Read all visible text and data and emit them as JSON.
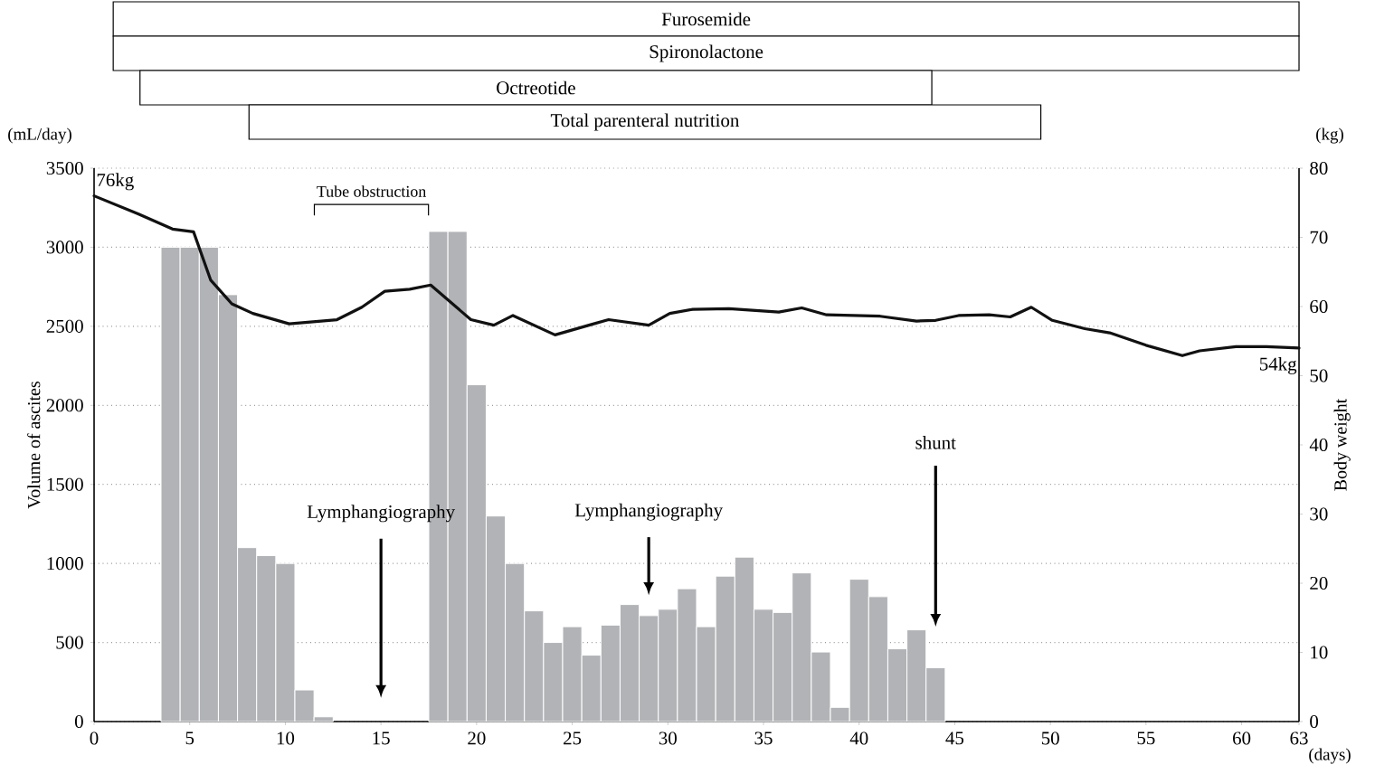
{
  "chart_data": [
    {
      "type": "bar",
      "orientation": "horizontal",
      "xlim": [
        0,
        63
      ],
      "tick_labels": false,
      "categories": [
        "Furosemide",
        "Spironolactone",
        "Octreotide",
        "Total parenteral nutrition"
      ],
      "base": [
        1,
        1,
        2.4,
        8.1
      ],
      "values": [
        62,
        62,
        41.4,
        41.4
      ],
      "color": "#ffffff"
    },
    {
      "type": "bar",
      "ylabel": "Volume of ascites",
      "y2label": "Body weight",
      "xlim": [
        0,
        63
      ],
      "xticks": [
        0,
        5,
        10,
        15,
        20,
        25,
        30,
        35,
        40,
        45,
        50,
        55,
        60,
        63
      ],
      "ylim": [
        0,
        3500
      ],
      "yticks": [
        0,
        500,
        1000,
        1500,
        2000,
        2500,
        3000,
        3500
      ],
      "y2lim": [
        0,
        80
      ],
      "y2ticks": [
        0,
        10,
        20,
        30,
        40,
        50,
        60,
        70,
        80
      ],
      "grid": "y",
      "series": [
        {
          "type": "bar",
          "axis": "y",
          "color": "#b1b3b6",
          "x": [
            4,
            5,
            6,
            7,
            8,
            9,
            10,
            11,
            12,
            13,
            14,
            15,
            16,
            17,
            18,
            19,
            20,
            21,
            22,
            23,
            24,
            25,
            26,
            27,
            28,
            29,
            30,
            31,
            32,
            33,
            34,
            35,
            36,
            37,
            38,
            39,
            40,
            41,
            42,
            43,
            44
          ],
          "values": [
            3000,
            3000,
            3000,
            2700,
            1100,
            1050,
            1000,
            200,
            30,
            null,
            null,
            null,
            null,
            null,
            3100,
            3100,
            2130,
            1300,
            1000,
            700,
            500,
            600,
            420,
            610,
            740,
            670,
            710,
            840,
            600,
            920,
            1040,
            710,
            690,
            940,
            440,
            90,
            900,
            790,
            460,
            580,
            340
          ]
        },
        {
          "type": "line",
          "axis": "y2",
          "color": "#111111",
          "line_style": "solid",
          "x": [
            0,
            2.3,
            4.1,
            5.2,
            6.1,
            7.2,
            8.3,
            10.2,
            12.7,
            14,
            15.2,
            16.5,
            17.6,
            19.7,
            20.9,
            21.9,
            24.1,
            26,
            26.9,
            29,
            30.1,
            31.3,
            33.2,
            35.8,
            37,
            38.3,
            41.1,
            43,
            44,
            45.2,
            46.8,
            47.9,
            49,
            50.1,
            51.8,
            53.1,
            55,
            56.9,
            57.8,
            59.7,
            61.3,
            63
          ],
          "values": [
            76,
            73.4,
            71.2,
            70.8,
            63.8,
            60.4,
            59,
            57.5,
            58.1,
            59.9,
            62.2,
            62.5,
            63.1,
            58.1,
            57.3,
            58.7,
            55.9,
            57.4,
            58.1,
            57.3,
            59,
            59.6,
            59.7,
            59.2,
            59.8,
            58.8,
            58.6,
            57.9,
            58,
            58.7,
            58.8,
            58.5,
            59.9,
            58,
            56.8,
            56.2,
            54.4,
            52.9,
            53.6,
            54.2,
            54.2,
            54
          ]
        }
      ],
      "annotations": [
        "76kg",
        "54kg",
        "Tube obstruction",
        "Lymphangiography",
        "Lymphangiography",
        "shunt",
        "(mL/day)",
        "(kg)",
        "(days)"
      ]
    }
  ]
}
